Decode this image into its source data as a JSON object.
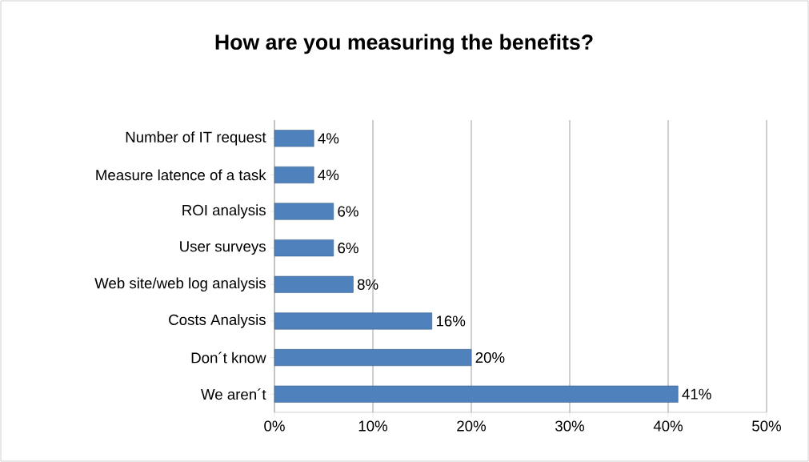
{
  "chart_data": {
    "type": "bar",
    "orientation": "horizontal",
    "title": "How are you measuring the benefits?",
    "categories": [
      "Number of IT request",
      "Measure latence of a task",
      "ROI analysis",
      "User surveys",
      "Web site/web log analysis",
      "Costs Analysis",
      "Don´t know",
      "We aren´t"
    ],
    "values": [
      4,
      4,
      6,
      6,
      8,
      16,
      20,
      41
    ],
    "value_labels": [
      "4%",
      "4%",
      "6%",
      "6%",
      "8%",
      "16%",
      "20%",
      "41%"
    ],
    "color": "#4f81bd",
    "xlim": [
      0,
      50
    ],
    "xticks": [
      {
        "value": 0,
        "label": "0%"
      },
      {
        "value": 10,
        "label": "10%"
      },
      {
        "value": 20,
        "label": "20%"
      },
      {
        "value": 30,
        "label": "30%"
      },
      {
        "value": 40,
        "label": "40%"
      },
      {
        "value": 50,
        "label": "50%"
      }
    ],
    "grid": "x"
  }
}
